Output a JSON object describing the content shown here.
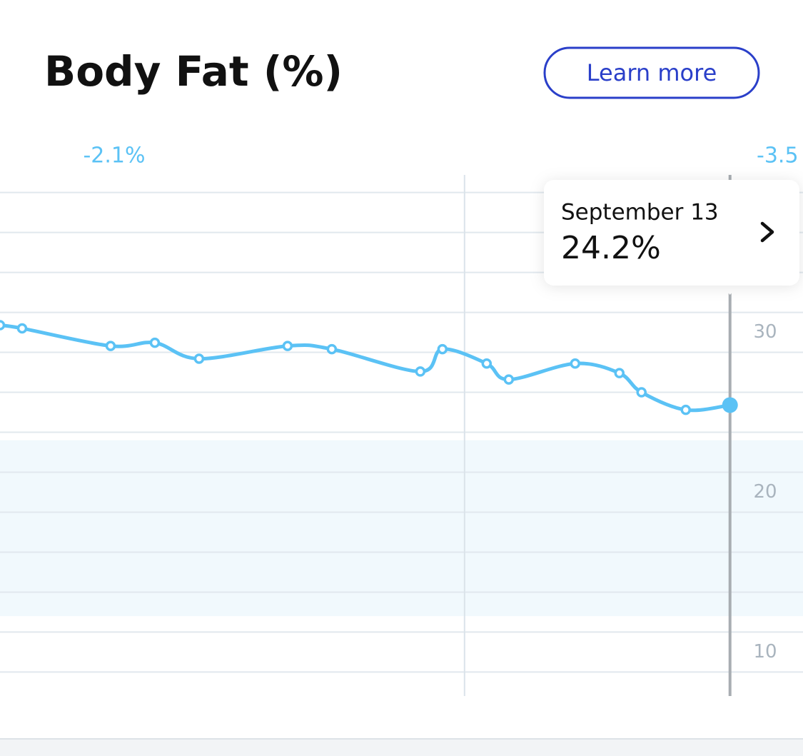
{
  "header": {
    "title": "Body Fat (%)",
    "button": "Learn more"
  },
  "chart_data": {
    "type": "line",
    "period_changes": [
      "-2.1%",
      "-3.5"
    ],
    "x": [
      -1,
      0,
      4,
      6,
      8,
      12,
      14,
      18,
      19,
      21,
      22,
      25,
      27,
      28,
      30,
      32
    ],
    "xlim": [
      -1,
      35.3
    ],
    "x_separators": [
      20
    ],
    "series": [
      {
        "color": "#5bc2f5",
        "values": [
          29.2,
          29.0,
          27.9,
          28.1,
          27.1,
          27.9,
          27.7,
          26.3,
          27.7,
          26.8,
          25.8,
          26.8,
          26.2,
          25.0,
          23.9,
          24.2
        ],
        "value_labels": [
          null,
          null,
          null,
          null,
          null,
          null,
          null,
          null,
          null,
          null,
          null,
          null,
          null,
          null,
          null,
          "24.2%"
        ]
      }
    ],
    "selected_index": 15,
    "tooltip_date": "September 13",
    "ylim": [
      6,
      38.6
    ],
    "yticks": [
      10,
      20,
      30
    ],
    "ygrid": [
      7.5,
      10,
      12.5,
      15,
      17.5,
      20,
      22.5,
      25,
      27.5,
      30,
      32.5,
      35,
      37.5
    ],
    "band": [
      11,
      22
    ],
    "band_color": "#f1f9fd"
  }
}
